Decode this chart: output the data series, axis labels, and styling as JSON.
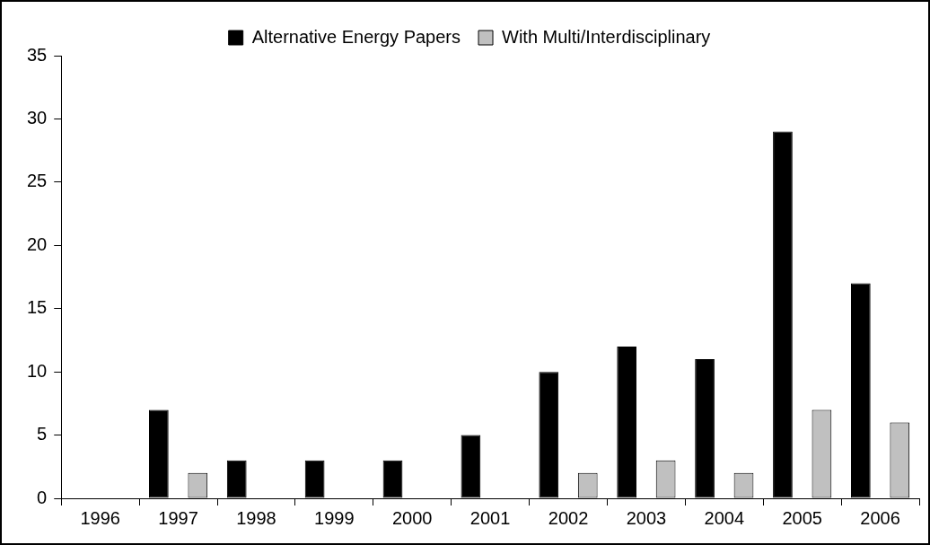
{
  "chart_data": {
    "type": "bar",
    "categories": [
      "1996",
      "1997",
      "1998",
      "1999",
      "2000",
      "2001",
      "2002",
      "2003",
      "2004",
      "2005",
      "2006"
    ],
    "series": [
      {
        "name": "Alternative Energy Papers",
        "color": "#000000",
        "values": [
          0,
          7,
          3,
          3,
          3,
          5,
          10,
          12,
          11,
          29,
          17
        ]
      },
      {
        "name": "With Multi/Interdisciplinary",
        "color": "#c0c0c0",
        "values": [
          0,
          2,
          0,
          0,
          0,
          0,
          2,
          3,
          2,
          7,
          6
        ]
      }
    ],
    "ylim": [
      0,
      35
    ],
    "yticks": [
      0,
      5,
      10,
      15,
      20,
      25,
      30,
      35
    ],
    "grid": false,
    "legend": "top"
  }
}
